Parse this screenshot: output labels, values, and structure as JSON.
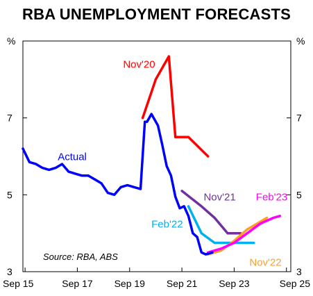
{
  "chart_data": {
    "type": "line",
    "title": "RBA UNEMPLOYMENT FORECASTS",
    "y_unit_left": "%",
    "y_unit_right": "%",
    "ylim": [
      3,
      9
    ],
    "y_ticks": [
      3,
      5,
      7
    ],
    "y_tick_labels": [
      "3",
      "5",
      "7"
    ],
    "xlim": [
      "2015-08",
      "2025-11"
    ],
    "x_ticks": [
      "2015-09",
      "2017-09",
      "2019-09",
      "2021-09",
      "2023-09",
      "2025-09"
    ],
    "x_tick_labels": [
      "Sep 15",
      "Sep 17",
      "Sep 19",
      "Sep 21",
      "Sep 23",
      "Sep 25"
    ],
    "grid": false,
    "source": "Source: RBA, ABS",
    "series": [
      {
        "name": "Nov'20",
        "color": "#ff0000",
        "x": [
          "2020-03",
          "2020-09",
          "2021-03",
          "2021-06",
          "2021-12",
          "2022-09"
        ],
        "y": [
          7.0,
          8.0,
          8.6,
          6.5,
          6.5,
          6.0
        ]
      },
      {
        "name": "Nov'21",
        "color": "#7030a0",
        "x": [
          "2021-09",
          "2022-06",
          "2022-12",
          "2023-06",
          "2023-12"
        ],
        "y": [
          5.1,
          4.7,
          4.4,
          4.0,
          4.0
        ]
      },
      {
        "name": "Feb'22",
        "color": "#00b0f0",
        "x": [
          "2021-12",
          "2022-06",
          "2022-12",
          "2023-06",
          "2023-12",
          "2024-06"
        ],
        "y": [
          4.7,
          4.0,
          3.75,
          3.75,
          3.75,
          3.75
        ]
      },
      {
        "name": "Nov'22",
        "color": "#ffa020",
        "x": [
          "2022-09",
          "2023-03",
          "2023-09",
          "2024-03",
          "2024-09",
          "2024-12"
        ],
        "y": [
          3.45,
          3.55,
          3.8,
          4.1,
          4.3,
          4.4
        ]
      },
      {
        "name": "Feb'23",
        "color": "#ff00ff",
        "x": [
          "2022-09",
          "2023-03",
          "2023-09",
          "2024-03",
          "2024-09",
          "2025-03",
          "2025-06"
        ],
        "y": [
          3.5,
          3.6,
          3.75,
          4.0,
          4.25,
          4.4,
          4.45
        ]
      },
      {
        "name": "Actual",
        "color": "#0000ff",
        "x": [
          "2015-08",
          "2015-11",
          "2016-02",
          "2016-05",
          "2016-08",
          "2016-11",
          "2017-02",
          "2017-05",
          "2017-08",
          "2017-11",
          "2018-02",
          "2018-05",
          "2018-08",
          "2018-11",
          "2019-02",
          "2019-05",
          "2019-08",
          "2019-11",
          "2020-02",
          "2020-04",
          "2020-05",
          "2020-07",
          "2020-10",
          "2020-12",
          "2021-02",
          "2021-04",
          "2021-06",
          "2021-08",
          "2021-10",
          "2021-12",
          "2022-02",
          "2022-04",
          "2022-06",
          "2022-08",
          "2022-11"
        ],
        "y": [
          6.2,
          5.85,
          5.8,
          5.7,
          5.65,
          5.7,
          5.8,
          5.6,
          5.55,
          5.5,
          5.5,
          5.4,
          5.3,
          5.05,
          5.0,
          5.2,
          5.25,
          5.2,
          5.15,
          6.9,
          6.9,
          7.1,
          6.8,
          6.3,
          5.75,
          5.5,
          4.95,
          4.65,
          4.7,
          4.45,
          4.0,
          3.9,
          3.5,
          3.45,
          3.5
        ]
      }
    ],
    "labels": [
      {
        "series": "Nov'20",
        "text": "Nov'20",
        "x": "2019-06",
        "y": 8.3
      },
      {
        "series": "Actual",
        "text": "Actual",
        "x": "2016-12",
        "y": 5.9
      },
      {
        "series": "Nov'21",
        "text": "Nov'21",
        "x": "2022-07",
        "y": 4.85
      },
      {
        "series": "Feb'22",
        "text": "Feb'22",
        "x": "2020-07",
        "y": 4.15
      },
      {
        "series": "Feb'23",
        "text": "Feb'23",
        "x": "2024-07",
        "y": 4.85
      },
      {
        "series": "Nov'22",
        "text": "Nov'22",
        "x": "2024-04",
        "y": 3.15
      }
    ]
  }
}
